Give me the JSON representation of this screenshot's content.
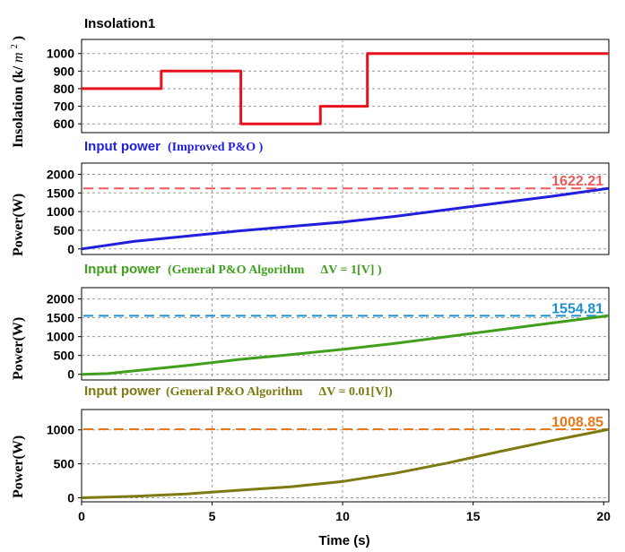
{
  "chart_data": [
    {
      "type": "line",
      "title": "Insolation1",
      "title_color": "#e8121c",
      "ylabel": "Insolation",
      "ylabel_unit_base": "(k/",
      "ylabel_unit_var": "m",
      "ylabel_unit_exp": "2",
      "ylabel_unit_close": ")",
      "xlim": [
        0,
        20.2
      ],
      "ylim": [
        550,
        1080
      ],
      "yticks": [
        600,
        700,
        800,
        900,
        1000
      ],
      "series": [
        {
          "color": "#e8121c",
          "x": [
            0,
            3.05,
            3.05,
            6.1,
            6.1,
            9.15,
            9.15,
            10.95,
            10.95,
            20.2
          ],
          "y": [
            800,
            800,
            900,
            900,
            600,
            600,
            700,
            700,
            1000,
            1000
          ]
        }
      ]
    },
    {
      "type": "line",
      "title": "Input power",
      "title_suffix": "(Improved P&O )",
      "title_color": "#1f1fdc",
      "ylabel": "Power(W)",
      "xlim": [
        0,
        20.2
      ],
      "ylim": [
        -150,
        2300
      ],
      "yticks": [
        0,
        500,
        1000,
        1500,
        2000
      ],
      "reference": {
        "value": 1622.21,
        "label": "1622.21",
        "color": "#ee5a5a"
      },
      "series": [
        {
          "color": "#1f1fdc",
          "x": [
            0,
            2,
            4,
            6,
            8,
            10,
            12,
            14,
            16,
            18,
            20.2
          ],
          "y": [
            0,
            200,
            340,
            480,
            600,
            720,
            870,
            1050,
            1230,
            1410,
            1622
          ]
        }
      ]
    },
    {
      "type": "line",
      "title": "Input power",
      "title_suffix": "(General P&O Algorithm",
      "title_formula": "ΔV = 1[V] )",
      "title_color": "#3fa01c",
      "ylabel": "Power(W)",
      "xlim": [
        0,
        20.2
      ],
      "ylim": [
        -150,
        2300
      ],
      "yticks": [
        0,
        500,
        1000,
        1500,
        2000
      ],
      "reference": {
        "value": 1554.81,
        "label": "1554.81",
        "color": "#1e8fd0"
      },
      "series": [
        {
          "color": "#3fa01c",
          "x": [
            0,
            1,
            2,
            4,
            6,
            8,
            10,
            12,
            14,
            16,
            18,
            20.2
          ],
          "y": [
            0,
            20,
            90,
            230,
            390,
            520,
            660,
            820,
            1000,
            1180,
            1360,
            1555
          ]
        }
      ]
    },
    {
      "type": "line",
      "title": "Input power",
      "title_suffix": "(General P&O Algorithm",
      "title_formula": "ΔV = 0.01[V])",
      "title_color": "#7d7a10",
      "ylabel": "Power(W)",
      "xlabel": "Time (s)",
      "xlim": [
        0,
        20.2
      ],
      "ylim": [
        -60,
        1300
      ],
      "yticks": [
        0,
        500,
        1000
      ],
      "xticks": [
        0,
        5,
        10,
        15,
        20
      ],
      "reference": {
        "value": 1008.85,
        "label": "1008.85",
        "color": "#e87818"
      },
      "series": [
        {
          "color": "#7d7a10",
          "x": [
            0,
            2,
            4,
            6,
            8,
            10,
            12,
            14,
            16,
            18,
            20.2
          ],
          "y": [
            0,
            20,
            55,
            110,
            160,
            240,
            360,
            510,
            680,
            840,
            1008
          ]
        }
      ]
    }
  ]
}
